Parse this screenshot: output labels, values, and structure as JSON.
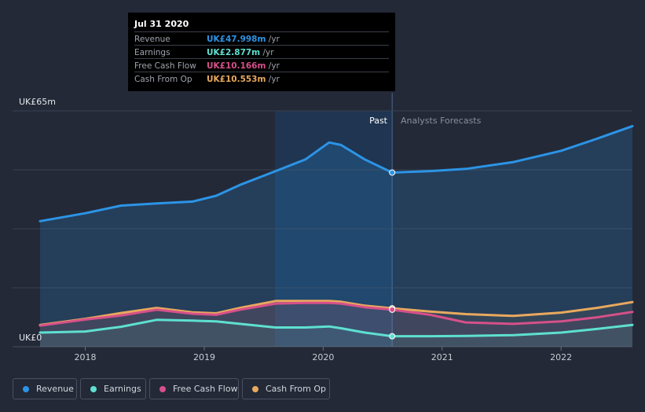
{
  "tooltip": {
    "date": "Jul 31 2020",
    "rows": [
      {
        "label": "Revenue",
        "value": "UK£47.998m",
        "unit": " /yr",
        "color": "#2c94e6"
      },
      {
        "label": "Earnings",
        "value": "UK£2.877m",
        "unit": " /yr",
        "color": "#5ee0d0"
      },
      {
        "label": "Free Cash Flow",
        "value": "UK£10.166m",
        "unit": " /yr",
        "color": "#d6508a"
      },
      {
        "label": "Cash From Op",
        "value": "UK£10.553m",
        "unit": " /yr",
        "color": "#e8a95e"
      }
    ]
  },
  "legend": [
    {
      "label": "Revenue",
      "color": "#2c94e6"
    },
    {
      "label": "Earnings",
      "color": "#5ee0d0"
    },
    {
      "label": "Free Cash Flow",
      "color": "#d6508a"
    },
    {
      "label": "Cash From Op",
      "color": "#e8a95e"
    }
  ],
  "chart_data": {
    "type": "line",
    "y_top_label": "UK£65m",
    "y_bottom_label": "UK£0",
    "ylim": [
      0,
      65
    ],
    "xlim": [
      2017.6,
      2022.6
    ],
    "divider_x": 2020.58,
    "past_label": "Past",
    "forecast_label": "Analysts Forecasts",
    "x_ticks": [
      {
        "value": 2018,
        "label": "2018"
      },
      {
        "value": 2019,
        "label": "2019"
      },
      {
        "value": 2020,
        "label": "2020"
      },
      {
        "value": 2021,
        "label": "2021"
      },
      {
        "value": 2022,
        "label": "2022"
      }
    ],
    "series": [
      {
        "name": "Revenue",
        "color": "#2c94e6",
        "width": 3,
        "fill": true,
        "x": [
          2017.62,
          2018.0,
          2018.3,
          2018.6,
          2018.9,
          2019.1,
          2019.3,
          2019.6,
          2019.85,
          2020.05,
          2020.15,
          2020.35,
          2020.58,
          2020.9,
          2021.2,
          2021.6,
          2022.0,
          2022.3,
          2022.6
        ],
        "y": [
          34.6,
          36.8,
          38.9,
          39.5,
          40.0,
          41.6,
          44.6,
          48.4,
          51.6,
          56.3,
          55.6,
          51.6,
          48.0,
          48.4,
          49.0,
          50.9,
          54.0,
          57.3,
          60.8
        ]
      },
      {
        "name": "Cash From Op",
        "color": "#e8a95e",
        "width": 3,
        "fill": false,
        "x": [
          2017.62,
          2018.0,
          2018.3,
          2018.6,
          2018.9,
          2019.1,
          2019.3,
          2019.6,
          2019.85,
          2020.05,
          2020.15,
          2020.35,
          2020.58,
          2020.9,
          2021.2,
          2021.6,
          2022.0,
          2022.3,
          2022.6
        ],
        "y": [
          6.0,
          7.7,
          9.3,
          10.7,
          9.5,
          9.2,
          10.7,
          12.6,
          12.6,
          12.6,
          12.4,
          11.3,
          10.6,
          9.7,
          9.0,
          8.5,
          9.4,
          10.7,
          12.3
        ]
      },
      {
        "name": "Free Cash Flow",
        "color": "#d6508a",
        "width": 3,
        "fill": false,
        "x": [
          2017.62,
          2018.0,
          2018.3,
          2018.6,
          2018.9,
          2019.1,
          2019.3,
          2019.6,
          2019.85,
          2020.05,
          2020.15,
          2020.35,
          2020.58,
          2020.9,
          2021.2,
          2021.6,
          2022.0,
          2022.3,
          2022.6
        ],
        "y": [
          5.8,
          7.5,
          8.6,
          10.2,
          9.1,
          8.8,
          10.2,
          11.9,
          12.1,
          12.1,
          11.9,
          10.9,
          10.2,
          8.8,
          6.7,
          6.3,
          7.0,
          8.1,
          9.6
        ]
      },
      {
        "name": "Earnings",
        "color": "#5ee0d0",
        "width": 3,
        "fill": false,
        "x": [
          2017.62,
          2018.0,
          2018.3,
          2018.6,
          2018.9,
          2019.1,
          2019.3,
          2019.6,
          2019.85,
          2020.05,
          2020.15,
          2020.35,
          2020.58,
          2020.9,
          2021.2,
          2021.6,
          2022.0,
          2022.3,
          2022.6
        ],
        "y": [
          3.9,
          4.2,
          5.5,
          7.4,
          7.2,
          7.0,
          6.3,
          5.3,
          5.3,
          5.6,
          5.1,
          3.9,
          2.9,
          2.9,
          3.0,
          3.2,
          3.9,
          4.9,
          6.0
        ]
      }
    ]
  }
}
